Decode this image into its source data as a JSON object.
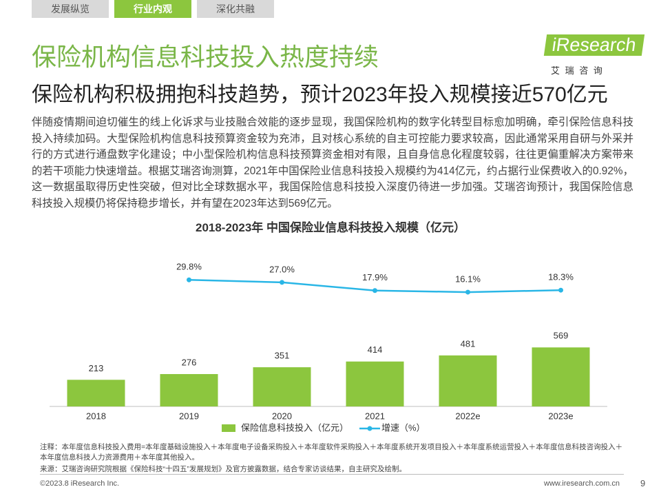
{
  "tabs": [
    "发展纵览",
    "行业内观",
    "深化共融"
  ],
  "active_tab": 1,
  "logo": {
    "brand": "iResearch",
    "subtitle": "艾 瑞 咨 询"
  },
  "header": {
    "title": "保险机构信息科技投入热度持续",
    "subtitle": "保险机构积极拥抱科技趋势，预计2023年投入规模接近570亿元"
  },
  "body": "伴随疫情期间迫切催生的线上化诉求与业技融合效能的逐步显现，我国保险机构的数字化转型目标愈加明确，牵引保险信息科技投入持续加码。大型保险机构信息科技预算资金较为充沛，且对核心系统的自主可控能力要求较高，因此通常采用自研与外采并行的方式进行通盘数字化建设；中小型保险机构信息科技预算资金相对有限，且自身信息化程度较弱，往往更偏重解决方案带来的若干项能力快速增益。根据艾瑞咨询测算，2021年中国保险业信息科技投入规模约为414亿元，约占据行业保费收入的0.92%，这一数据虽取得历史性突破，但对比全球数据水平，我国保险信息科技投入深度仍待进一步加强。艾瑞咨询预计，我国保险信息科技投入规模仍将保持稳步增长，并有望在2023年达到569亿元。",
  "chart_data": {
    "type": "bar",
    "title": "2018-2023年 中国保险业信息科技投入规模（亿元）",
    "categories": [
      "2018",
      "2019",
      "2020",
      "2021",
      "2022e",
      "2023e"
    ],
    "series": [
      {
        "name": "保险信息科技投入（亿元）",
        "type": "bar",
        "color": "#8cc63e",
        "values": [
          213,
          276,
          351,
          414,
          481,
          569
        ]
      },
      {
        "name": "增速（%）",
        "type": "line",
        "axis": "y2",
        "color": "#29b6e6",
        "values": [
          null,
          29.8,
          27.0,
          17.9,
          16.1,
          18.3
        ],
        "value_labels": [
          null,
          "29.8%",
          "27.0%",
          "17.9%",
          "16.1%",
          "18.3%"
        ]
      }
    ],
    "ylim": [
      -80,
      1200
    ],
    "y2lim": [
      0,
      40
    ],
    "legend": "bottom"
  },
  "notes": {
    "note": "注释：本年度信息科技投入费用=本年度基础设施投入＋本年度电子设备采购投入＋本年度软件采购投入＋本年度系统开发项目投入＋本年度系统运营投入＋本年度信息科技咨询投入＋本年度信息科技人力资源费用＋本年度其他投入。",
    "source": "来源：艾瑞咨询研究院根据《保险科技“十四五”发展规划》及官方披露数据，结合专家访谈结果，自主研究及绘制。"
  },
  "footer": {
    "copyright": "©2023.8 iResearch Inc.",
    "url": "www.iresearch.com.cn",
    "page": "9"
  }
}
